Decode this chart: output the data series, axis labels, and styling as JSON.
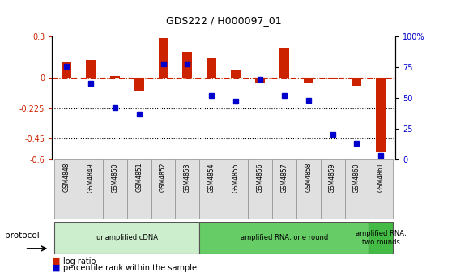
{
  "title": "GDS222 / H000097_01",
  "samples": [
    "GSM4848",
    "GSM4849",
    "GSM4850",
    "GSM4851",
    "GSM4852",
    "GSM4853",
    "GSM4854",
    "GSM4855",
    "GSM4856",
    "GSM4857",
    "GSM4858",
    "GSM4859",
    "GSM4860",
    "GSM4861"
  ],
  "log_ratio": [
    0.12,
    0.13,
    0.01,
    -0.1,
    0.29,
    0.19,
    0.14,
    0.05,
    -0.04,
    0.22,
    -0.04,
    -0.01,
    -0.06,
    -0.55
  ],
  "percentile": [
    76,
    62,
    42,
    37,
    78,
    78,
    52,
    47,
    65,
    52,
    48,
    20,
    13,
    3
  ],
  "ylim_left": [
    -0.6,
    0.3
  ],
  "ylim_right": [
    0,
    100
  ],
  "yticks_left": [
    0.3,
    0,
    -0.225,
    -0.45,
    -0.6
  ],
  "yticks_right": [
    100,
    75,
    50,
    25,
    0
  ],
  "ytick_labels_left": [
    "0.3",
    "0",
    "-0.225",
    "-0.45",
    "-0.6"
  ],
  "ytick_labels_right": [
    "100%",
    "75",
    "50",
    "25",
    "0"
  ],
  "hline_y": 0,
  "dotted_lines": [
    -0.225,
    -0.45
  ],
  "bar_color": "#cc2200",
  "dot_color": "#0000cc",
  "protocol_groups": [
    {
      "label": "unamplified cDNA",
      "start": 0,
      "end": 5,
      "color": "#cceecc"
    },
    {
      "label": "amplified RNA, one round",
      "start": 6,
      "end": 12,
      "color": "#66cc66"
    },
    {
      "label": "amplified RNA,\ntwo rounds",
      "start": 13,
      "end": 13,
      "color": "#44bb44"
    }
  ],
  "xlabel_protocol": "protocol",
  "legend_log": "log ratio",
  "legend_pct": "percentile rank within the sample",
  "background_color": "#ffffff",
  "plot_bg": "#ffffff",
  "bar_width": 0.4
}
